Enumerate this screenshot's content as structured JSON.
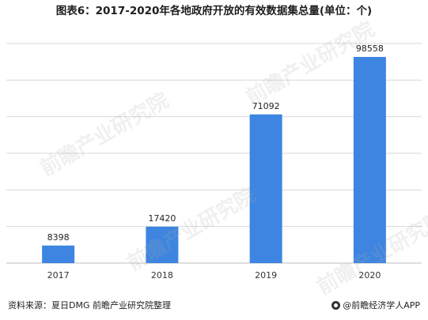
{
  "title": "图表6：2017-2020年各地政府开放的有效数据集总量(单位：个)",
  "source": "资料来源：夏日DMG 前瞻产业研究院整理",
  "brand": "@前瞻经济学人APP",
  "watermark": "前瞻产业研究院",
  "colors": {
    "bar": "#3d85e0",
    "grid": "#d9d9d9",
    "axis": "#bfbfbf"
  },
  "chart_data": {
    "type": "bar",
    "categories": [
      "2017",
      "2018",
      "2019",
      "2020"
    ],
    "values": [
      8398,
      17420,
      71092,
      98558
    ],
    "title": "图表6：2017-2020年各地政府开放的有效数据集总量(单位：个)",
    "xlabel": "",
    "ylabel": "",
    "ylim": [
      0,
      105000
    ],
    "grid": true,
    "data_labels": true,
    "legend": false
  }
}
